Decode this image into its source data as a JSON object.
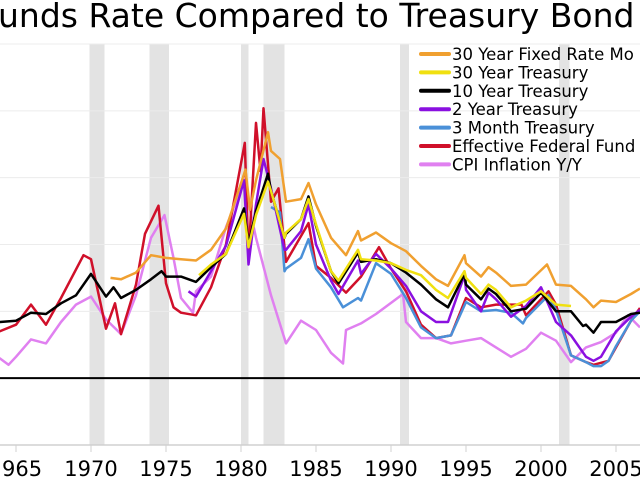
{
  "chart_data": {
    "type": "line",
    "title": "unds Rate Compared to Treasury Bond",
    "xlabel": "",
    "ylabel": "",
    "xlim": [
      1963.9,
      2006.6
    ],
    "ylim": [
      -5,
      25
    ],
    "grid": true,
    "legend_position": "top-right",
    "x_ticks": [
      "965",
      "1970",
      "1975",
      "1980",
      "1985",
      "1990",
      "1995",
      "2000",
      "2005"
    ],
    "recessions": [
      [
        1969.9,
        1970.9
      ],
      [
        1973.9,
        1975.2
      ],
      [
        1980.0,
        1980.5
      ],
      [
        1981.5,
        1982.9
      ],
      [
        1990.6,
        1991.2
      ],
      [
        2001.2,
        2001.9
      ]
    ],
    "series": [
      {
        "name": "30 Year Fixed Rate Mo",
        "color": "#F0A030",
        "points": [
          [
            1971.3,
            7.5
          ],
          [
            1972,
            7.4
          ],
          [
            1973,
            7.9
          ],
          [
            1974,
            9.2
          ],
          [
            1975,
            9.0
          ],
          [
            1976,
            8.9
          ],
          [
            1977,
            8.8
          ],
          [
            1978,
            9.6
          ],
          [
            1979,
            11.2
          ],
          [
            1980.3,
            15.6
          ],
          [
            1980.6,
            12.6
          ],
          [
            1981,
            14.8
          ],
          [
            1981.8,
            18.4
          ],
          [
            1982,
            17.0
          ],
          [
            1982.6,
            16.4
          ],
          [
            1983,
            13.2
          ],
          [
            1984,
            13.4
          ],
          [
            1984.5,
            14.6
          ],
          [
            1985,
            13.0
          ],
          [
            1986,
            10.5
          ],
          [
            1987,
            9.2
          ],
          [
            1987.8,
            11.0
          ],
          [
            1988,
            10.3
          ],
          [
            1989,
            10.9
          ],
          [
            1990,
            10.1
          ],
          [
            1991,
            9.5
          ],
          [
            1992,
            8.4
          ],
          [
            1993,
            7.4
          ],
          [
            1993.8,
            6.9
          ],
          [
            1994.9,
            9.2
          ],
          [
            1995,
            8.6
          ],
          [
            1996,
            7.6
          ],
          [
            1996.5,
            8.3
          ],
          [
            1997,
            7.9
          ],
          [
            1998,
            6.9
          ],
          [
            1999,
            7.0
          ],
          [
            2000.4,
            8.5
          ],
          [
            2001,
            7.0
          ],
          [
            2002,
            6.9
          ],
          [
            2003,
            5.9
          ],
          [
            2003.5,
            5.3
          ],
          [
            2004,
            5.8
          ],
          [
            2005,
            5.7
          ],
          [
            2006,
            6.3
          ],
          [
            2006.6,
            6.7
          ]
        ]
      },
      {
        "name": "30 Year Treasury",
        "color": "#F0E010",
        "points": [
          [
            1977.2,
            7.7
          ],
          [
            1978,
            8.5
          ],
          [
            1979,
            9.3
          ],
          [
            1980.2,
            12.3
          ],
          [
            1980.5,
            9.8
          ],
          [
            1981,
            12.2
          ],
          [
            1981.8,
            14.7
          ],
          [
            1982,
            14.0
          ],
          [
            1982.9,
            10.5
          ],
          [
            1983,
            10.9
          ],
          [
            1984,
            11.9
          ],
          [
            1984.5,
            13.4
          ],
          [
            1985,
            11.5
          ],
          [
            1986,
            8.0
          ],
          [
            1986.5,
            7.3
          ],
          [
            1987.8,
            9.6
          ],
          [
            1988,
            8.9
          ],
          [
            1989,
            8.8
          ],
          [
            1990,
            8.6
          ],
          [
            1991,
            8.1
          ],
          [
            1992,
            7.7
          ],
          [
            1993,
            6.6
          ],
          [
            1993.8,
            6.0
          ],
          [
            1994.9,
            8.0
          ],
          [
            1995,
            7.5
          ],
          [
            1996,
            6.3
          ],
          [
            1996.5,
            7.0
          ],
          [
            1997,
            6.6
          ],
          [
            1998,
            5.3
          ],
          [
            1999,
            5.8
          ],
          [
            2000,
            6.5
          ],
          [
            2001,
            5.5
          ],
          [
            2002,
            5.4
          ]
        ]
      },
      {
        "name": "10 Year Treasury",
        "color": "#000000",
        "points": [
          [
            1963.9,
            4.2
          ],
          [
            1965,
            4.3
          ],
          [
            1966,
            4.9
          ],
          [
            1967,
            4.8
          ],
          [
            1968,
            5.6
          ],
          [
            1969,
            6.2
          ],
          [
            1970,
            7.8
          ],
          [
            1971,
            6.1
          ],
          [
            1971.5,
            6.8
          ],
          [
            1972,
            6.0
          ],
          [
            1973,
            6.6
          ],
          [
            1974,
            7.4
          ],
          [
            1974.7,
            8.0
          ],
          [
            1975,
            7.6
          ],
          [
            1976,
            7.6
          ],
          [
            1977,
            7.2
          ],
          [
            1978,
            8.3
          ],
          [
            1979,
            9.3
          ],
          [
            1980.2,
            12.7
          ],
          [
            1980.5,
            10.0
          ],
          [
            1981,
            12.5
          ],
          [
            1981.8,
            15.3
          ],
          [
            1982,
            14.0
          ],
          [
            1982.9,
            10.5
          ],
          [
            1983,
            10.8
          ],
          [
            1984,
            11.9
          ],
          [
            1984.5,
            13.6
          ],
          [
            1985,
            11.4
          ],
          [
            1986,
            8.0
          ],
          [
            1986.5,
            7.1
          ],
          [
            1987.8,
            9.4
          ],
          [
            1988,
            8.7
          ],
          [
            1989,
            8.9
          ],
          [
            1990,
            8.6
          ],
          [
            1991,
            7.9
          ],
          [
            1992,
            7.0
          ],
          [
            1993,
            5.9
          ],
          [
            1993.8,
            5.3
          ],
          [
            1994.9,
            7.8
          ],
          [
            1995,
            7.0
          ],
          [
            1996,
            5.9
          ],
          [
            1996.5,
            6.7
          ],
          [
            1997,
            6.3
          ],
          [
            1998,
            5.0
          ],
          [
            1999,
            5.2
          ],
          [
            2000,
            6.4
          ],
          [
            2001,
            5.0
          ],
          [
            2002,
            5.0
          ],
          [
            2002.8,
            3.9
          ],
          [
            2003,
            4.0
          ],
          [
            2003.5,
            3.4
          ],
          [
            2004,
            4.2
          ],
          [
            2005,
            4.2
          ],
          [
            2006,
            4.8
          ],
          [
            2006.6,
            4.9
          ]
        ]
      },
      {
        "name": "2 Year Treasury",
        "color": "#8A10E0",
        "points": [
          [
            1976.5,
            6.5
          ],
          [
            1977,
            6.1
          ],
          [
            1978,
            8.0
          ],
          [
            1979,
            9.9
          ],
          [
            1980.2,
            14.8
          ],
          [
            1980.5,
            8.5
          ],
          [
            1981,
            13.0
          ],
          [
            1981.5,
            16.4
          ],
          [
            1982,
            14.2
          ],
          [
            1982.9,
            9.6
          ],
          [
            1983,
            9.6
          ],
          [
            1984,
            11.0
          ],
          [
            1984.5,
            13.0
          ],
          [
            1985,
            10.0
          ],
          [
            1986,
            7.3
          ],
          [
            1986.5,
            6.3
          ],
          [
            1987.8,
            8.8
          ],
          [
            1988,
            7.8
          ],
          [
            1989,
            9.3
          ],
          [
            1990,
            8.2
          ],
          [
            1991,
            6.9
          ],
          [
            1992,
            5.0
          ],
          [
            1993,
            4.2
          ],
          [
            1993.8,
            4.2
          ],
          [
            1994.9,
            7.7
          ],
          [
            1995,
            6.6
          ],
          [
            1996,
            5.0
          ],
          [
            1996.5,
            6.4
          ],
          [
            1997,
            5.9
          ],
          [
            1998,
            4.6
          ],
          [
            1999,
            5.4
          ],
          [
            2000,
            6.8
          ],
          [
            2001,
            4.2
          ],
          [
            2002,
            3.2
          ],
          [
            2003,
            1.6
          ],
          [
            2003.5,
            1.3
          ],
          [
            2004,
            1.6
          ],
          [
            2005,
            3.5
          ],
          [
            2006,
            4.6
          ],
          [
            2006.6,
            5.1
          ]
        ]
      },
      {
        "name": "3 Month Treasury",
        "color": "#4A90D8",
        "points": [
          [
            1982,
            12.8
          ],
          [
            1982.6,
            12.4
          ],
          [
            1982.9,
            8.0
          ],
          [
            1983,
            8.2
          ],
          [
            1984,
            9.0
          ],
          [
            1984.5,
            10.4
          ],
          [
            1985,
            8.2
          ],
          [
            1986,
            6.8
          ],
          [
            1986.8,
            5.3
          ],
          [
            1987.8,
            6.0
          ],
          [
            1988,
            5.8
          ],
          [
            1989,
            8.6
          ],
          [
            1990,
            7.8
          ],
          [
            1991,
            6.0
          ],
          [
            1992,
            3.8
          ],
          [
            1993,
            3.0
          ],
          [
            1994,
            3.2
          ],
          [
            1995,
            5.7
          ],
          [
            1996,
            5.0
          ],
          [
            1997,
            5.1
          ],
          [
            1998,
            4.9
          ],
          [
            1998.8,
            4.1
          ],
          [
            1999,
            4.5
          ],
          [
            2000.5,
            6.2
          ],
          [
            2001,
            5.1
          ],
          [
            2002,
            1.7
          ],
          [
            2003,
            1.2
          ],
          [
            2003.5,
            0.9
          ],
          [
            2004,
            0.9
          ],
          [
            2004.5,
            1.3
          ],
          [
            2005,
            2.4
          ],
          [
            2006,
            4.3
          ],
          [
            2006.6,
            5.0
          ]
        ]
      },
      {
        "name": "Effective Federal Fund",
        "color": "#D0102A",
        "points": [
          [
            1963.9,
            3.5
          ],
          [
            1965,
            4.0
          ],
          [
            1966,
            5.5
          ],
          [
            1967,
            4.0
          ],
          [
            1968,
            6.0
          ],
          [
            1969.5,
            9.2
          ],
          [
            1970,
            8.9
          ],
          [
            1971,
            3.7
          ],
          [
            1971.6,
            5.6
          ],
          [
            1972,
            3.3
          ],
          [
            1973,
            7.0
          ],
          [
            1973.6,
            10.8
          ],
          [
            1974.5,
            12.9
          ],
          [
            1975,
            7.1
          ],
          [
            1975.5,
            5.3
          ],
          [
            1976,
            4.9
          ],
          [
            1977,
            4.7
          ],
          [
            1978,
            6.8
          ],
          [
            1979,
            10.0
          ],
          [
            1980.25,
            17.6
          ],
          [
            1980.5,
            9.0
          ],
          [
            1981,
            19.1
          ],
          [
            1981.3,
            15.5
          ],
          [
            1981.5,
            20.2
          ],
          [
            1982,
            13.2
          ],
          [
            1982.5,
            14.2
          ],
          [
            1983,
            8.7
          ],
          [
            1984.5,
            11.6
          ],
          [
            1985,
            8.4
          ],
          [
            1986,
            7.5
          ],
          [
            1987,
            6.4
          ],
          [
            1988,
            7.6
          ],
          [
            1989.2,
            9.8
          ],
          [
            1990,
            8.2
          ],
          [
            1991,
            6.5
          ],
          [
            1992,
            4.0
          ],
          [
            1993,
            3.0
          ],
          [
            1994,
            3.2
          ],
          [
            1995,
            6.0
          ],
          [
            1996,
            5.3
          ],
          [
            1997,
            5.5
          ],
          [
            1998.7,
            5.5
          ],
          [
            1999,
            4.7
          ],
          [
            2000.5,
            6.5
          ],
          [
            2001,
            5.5
          ],
          [
            2002,
            1.7
          ],
          [
            2003,
            1.2
          ],
          [
            2003.5,
            1.0
          ],
          [
            2004.5,
            1.3
          ],
          [
            2005,
            2.3
          ],
          [
            2006,
            4.3
          ],
          [
            2006.6,
            5.25
          ]
        ]
      },
      {
        "name": "CPI Inflation Y/Y",
        "color": "#E080F0",
        "points": [
          [
            1963.9,
            1.5
          ],
          [
            1964.5,
            1.0
          ],
          [
            1965,
            1.6
          ],
          [
            1966,
            2.9
          ],
          [
            1967,
            2.6
          ],
          [
            1968,
            4.2
          ],
          [
            1969,
            5.5
          ],
          [
            1970,
            6.1
          ],
          [
            1971,
            4.4
          ],
          [
            1972,
            3.3
          ],
          [
            1973,
            6.2
          ],
          [
            1974,
            10.5
          ],
          [
            1974.9,
            12.2
          ],
          [
            1975.5,
            9.0
          ],
          [
            1976,
            6.0
          ],
          [
            1976.8,
            4.9
          ],
          [
            1977,
            6.5
          ],
          [
            1978,
            7.6
          ],
          [
            1979,
            11.3
          ],
          [
            1980.2,
            14.7
          ],
          [
            1981,
            10.5
          ],
          [
            1982,
            6.2
          ],
          [
            1983,
            2.6
          ],
          [
            1984,
            4.3
          ],
          [
            1985,
            3.6
          ],
          [
            1986,
            1.9
          ],
          [
            1986.8,
            1.1
          ],
          [
            1987,
            3.6
          ],
          [
            1988,
            4.1
          ],
          [
            1989,
            4.8
          ],
          [
            1990.8,
            6.3
          ],
          [
            1991,
            4.2
          ],
          [
            1992,
            3.0
          ],
          [
            1993,
            3.0
          ],
          [
            1994,
            2.6
          ],
          [
            1995,
            2.8
          ],
          [
            1996,
            3.0
          ],
          [
            1997,
            2.3
          ],
          [
            1998,
            1.6
          ],
          [
            1999,
            2.2
          ],
          [
            2000,
            3.4
          ],
          [
            2001,
            2.8
          ],
          [
            2002,
            1.2
          ],
          [
            2003,
            2.3
          ],
          [
            2004,
            2.7
          ],
          [
            2005,
            3.4
          ],
          [
            2005.8,
            4.7
          ],
          [
            2006.6,
            3.8
          ]
        ]
      }
    ]
  }
}
